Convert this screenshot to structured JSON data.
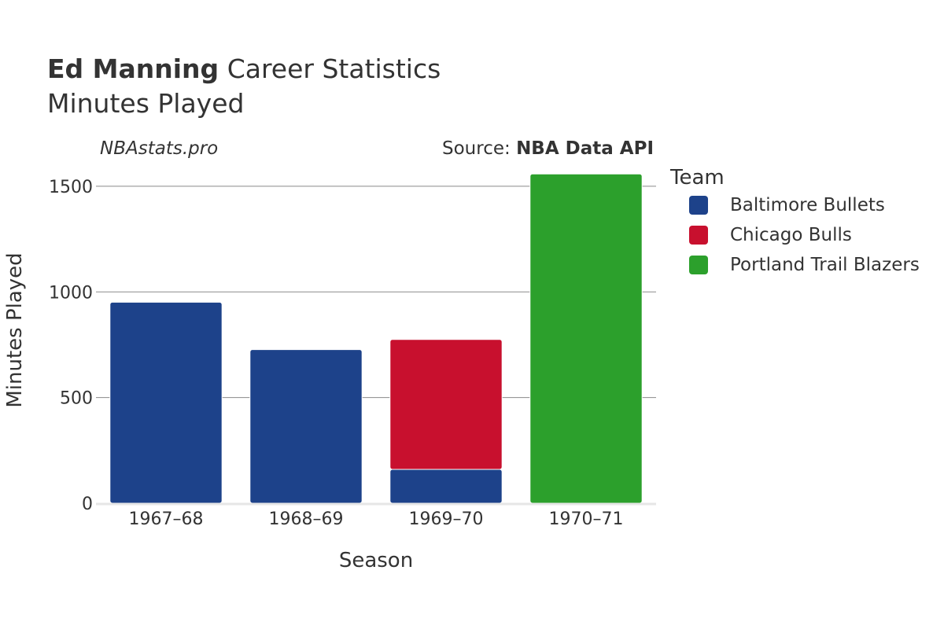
{
  "header": {
    "player": "Ed Manning",
    "title_rest": "Career Statistics",
    "subtitle": "Minutes Played",
    "watermark": "NBAstats.pro",
    "source_prefix": "Source: ",
    "source_name": "NBA Data API"
  },
  "legend": {
    "title": "Team",
    "items": [
      {
        "label": "Baltimore Bullets",
        "color": "#1d428a"
      },
      {
        "label": "Chicago Bulls",
        "color": "#c8102e"
      },
      {
        "label": "Portland Trail Blazers",
        "color": "#2ca02c"
      }
    ]
  },
  "chart_data": {
    "type": "bar",
    "stacked": true,
    "title": "Ed Manning Career Statistics",
    "subtitle": "Minutes Played",
    "xlabel": "Season",
    "ylabel": "Minutes Played",
    "categories": [
      "1967–68",
      "1968–69",
      "1969–70",
      "1970–71"
    ],
    "ylim": [
      0,
      1600
    ],
    "yticks": [
      0,
      500,
      1000,
      1500
    ],
    "grid": true,
    "legend_position": "right",
    "series": [
      {
        "name": "Baltimore Bullets",
        "color": "#1d428a",
        "values": [
          951,
          727,
          160,
          0
        ]
      },
      {
        "name": "Chicago Bulls",
        "color": "#c8102e",
        "values": [
          0,
          0,
          615,
          0
        ]
      },
      {
        "name": "Portland Trail Blazers",
        "color": "#2ca02c",
        "values": [
          0,
          0,
          0,
          1558
        ]
      }
    ]
  }
}
